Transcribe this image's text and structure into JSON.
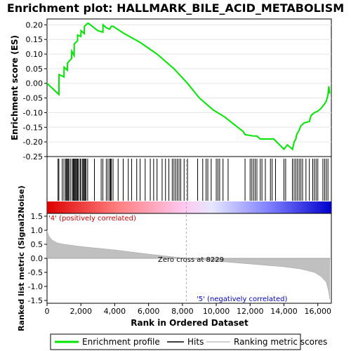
{
  "chart_data": {
    "type": "line",
    "title": "Enrichment plot: HALLMARK_BILE_ACID_METABOLISM",
    "top_panel": {
      "ylabel": "Enrichment score (ES)",
      "ylim": [
        -0.25,
        0.22
      ],
      "yticks": [
        "0.20",
        "0.15",
        "0.10",
        "0.05",
        "0.00",
        "-0.05",
        "-0.10",
        "-0.15",
        "-0.20",
        "-0.25"
      ],
      "series": [
        {
          "name": "Enrichment profile",
          "color": "#00e600",
          "x": [
            0,
            700,
            710,
            1000,
            1010,
            1200,
            1210,
            1450,
            1460,
            1600,
            1610,
            1800,
            1810,
            2000,
            2010,
            2200,
            2210,
            2400,
            2450,
            3000,
            3300,
            3310,
            3500,
            3700,
            3800,
            3900,
            4500,
            5500,
            6500,
            7500,
            8300,
            9000,
            9800,
            10500,
            11600,
            11700,
            12200,
            12400,
            12600,
            13000,
            13400,
            14000,
            14200,
            14500,
            14600,
            14700,
            14750,
            14900,
            15000,
            15200,
            15500,
            15600,
            15800,
            16000,
            16200,
            16400,
            16500,
            16600,
            16650,
            16700
          ],
          "y": [
            0.0,
            -0.038,
            0.03,
            0.022,
            0.055,
            0.045,
            0.07,
            0.085,
            0.11,
            0.095,
            0.135,
            0.145,
            0.165,
            0.16,
            0.18,
            0.17,
            0.195,
            0.205,
            0.205,
            0.18,
            0.175,
            0.2,
            0.19,
            0.185,
            0.195,
            0.195,
            0.172,
            0.14,
            0.1,
            0.05,
            0.0,
            -0.05,
            -0.09,
            -0.115,
            -0.165,
            -0.175,
            -0.18,
            -0.18,
            -0.19,
            -0.19,
            -0.19,
            -0.225,
            -0.21,
            -0.225,
            -0.2,
            -0.19,
            -0.175,
            -0.16,
            -0.145,
            -0.135,
            -0.13,
            -0.11,
            -0.1,
            -0.095,
            -0.085,
            -0.07,
            -0.06,
            -0.04,
            -0.01,
            -0.035
          ]
        }
      ]
    },
    "hits_panel": {
      "series_name": "Hits",
      "positions": [
        650,
        700,
        900,
        1000,
        1100,
        1150,
        1200,
        1250,
        1300,
        1400,
        1500,
        1550,
        1600,
        1650,
        1700,
        1750,
        1800,
        1850,
        1950,
        2000,
        2100,
        2150,
        2200,
        2250,
        2300,
        2400,
        2800,
        3200,
        3300,
        3500,
        3600,
        3700,
        3750,
        3800,
        3900,
        4200,
        4500,
        4800,
        5000,
        5300,
        5500,
        5800,
        6100,
        6300,
        6500,
        6800,
        7000,
        7200,
        7400,
        7500,
        7600,
        7700,
        7800,
        7900,
        8100,
        8300,
        8900,
        9200,
        9400,
        9500,
        9700,
        10000,
        10100,
        10200,
        10400,
        10700,
        11700,
        12000,
        12100,
        12200,
        12300,
        12400,
        12600,
        12700,
        12900,
        13200,
        13300,
        13500,
        14000,
        14100,
        14500,
        14600,
        14700,
        14800,
        14900,
        15000,
        15100,
        15300,
        15500,
        15700,
        15800,
        15900,
        16000,
        16300,
        16400,
        16500,
        16600
      ]
    },
    "bottom_panel": {
      "ylabel": "Ranked list metric (Signal2Noise)",
      "xlabel": "Rank in Ordered Dataset",
      "xlim": [
        0,
        16800
      ],
      "ylim": [
        -1.6,
        1.6
      ],
      "xticks": [
        "0",
        "2,000",
        "4,000",
        "6,000",
        "8,000",
        "10,000",
        "12,000",
        "14,000",
        "16,000"
      ],
      "yticks": [
        "1.5",
        "1.0",
        "0.5",
        "0.0",
        "-0.5",
        "-1.0",
        "-1.5"
      ],
      "metric_curve": {
        "x": [
          0,
          100,
          300,
          600,
          1000,
          2000,
          4000,
          6000,
          8229,
          10000,
          12000,
          14000,
          15000,
          15800,
          16200,
          16500,
          16650,
          16700
        ],
        "y": [
          1.0,
          0.8,
          0.65,
          0.55,
          0.5,
          0.42,
          0.3,
          0.15,
          0.0,
          -0.1,
          -0.2,
          -0.3,
          -0.38,
          -0.5,
          -0.65,
          -0.85,
          -1.2,
          -1.45
        ]
      },
      "zero_cross_label": "Zero cross at 8229",
      "zero_cross_x": 8229,
      "positive_label": "'4' (positively correlated)",
      "negative_label": "'5' (negatively correlated)",
      "positive_color": "#cc0000",
      "negative_color": "#0000cc"
    },
    "legend": {
      "placement": "bottom",
      "items": [
        {
          "label": "Enrichment profile",
          "color": "#00e600",
          "style": "line"
        },
        {
          "label": "Hits",
          "color": "#000000",
          "style": "line"
        },
        {
          "label": "Ranking metric scores",
          "color": "#c0c0c0",
          "style": "line"
        }
      ]
    }
  }
}
